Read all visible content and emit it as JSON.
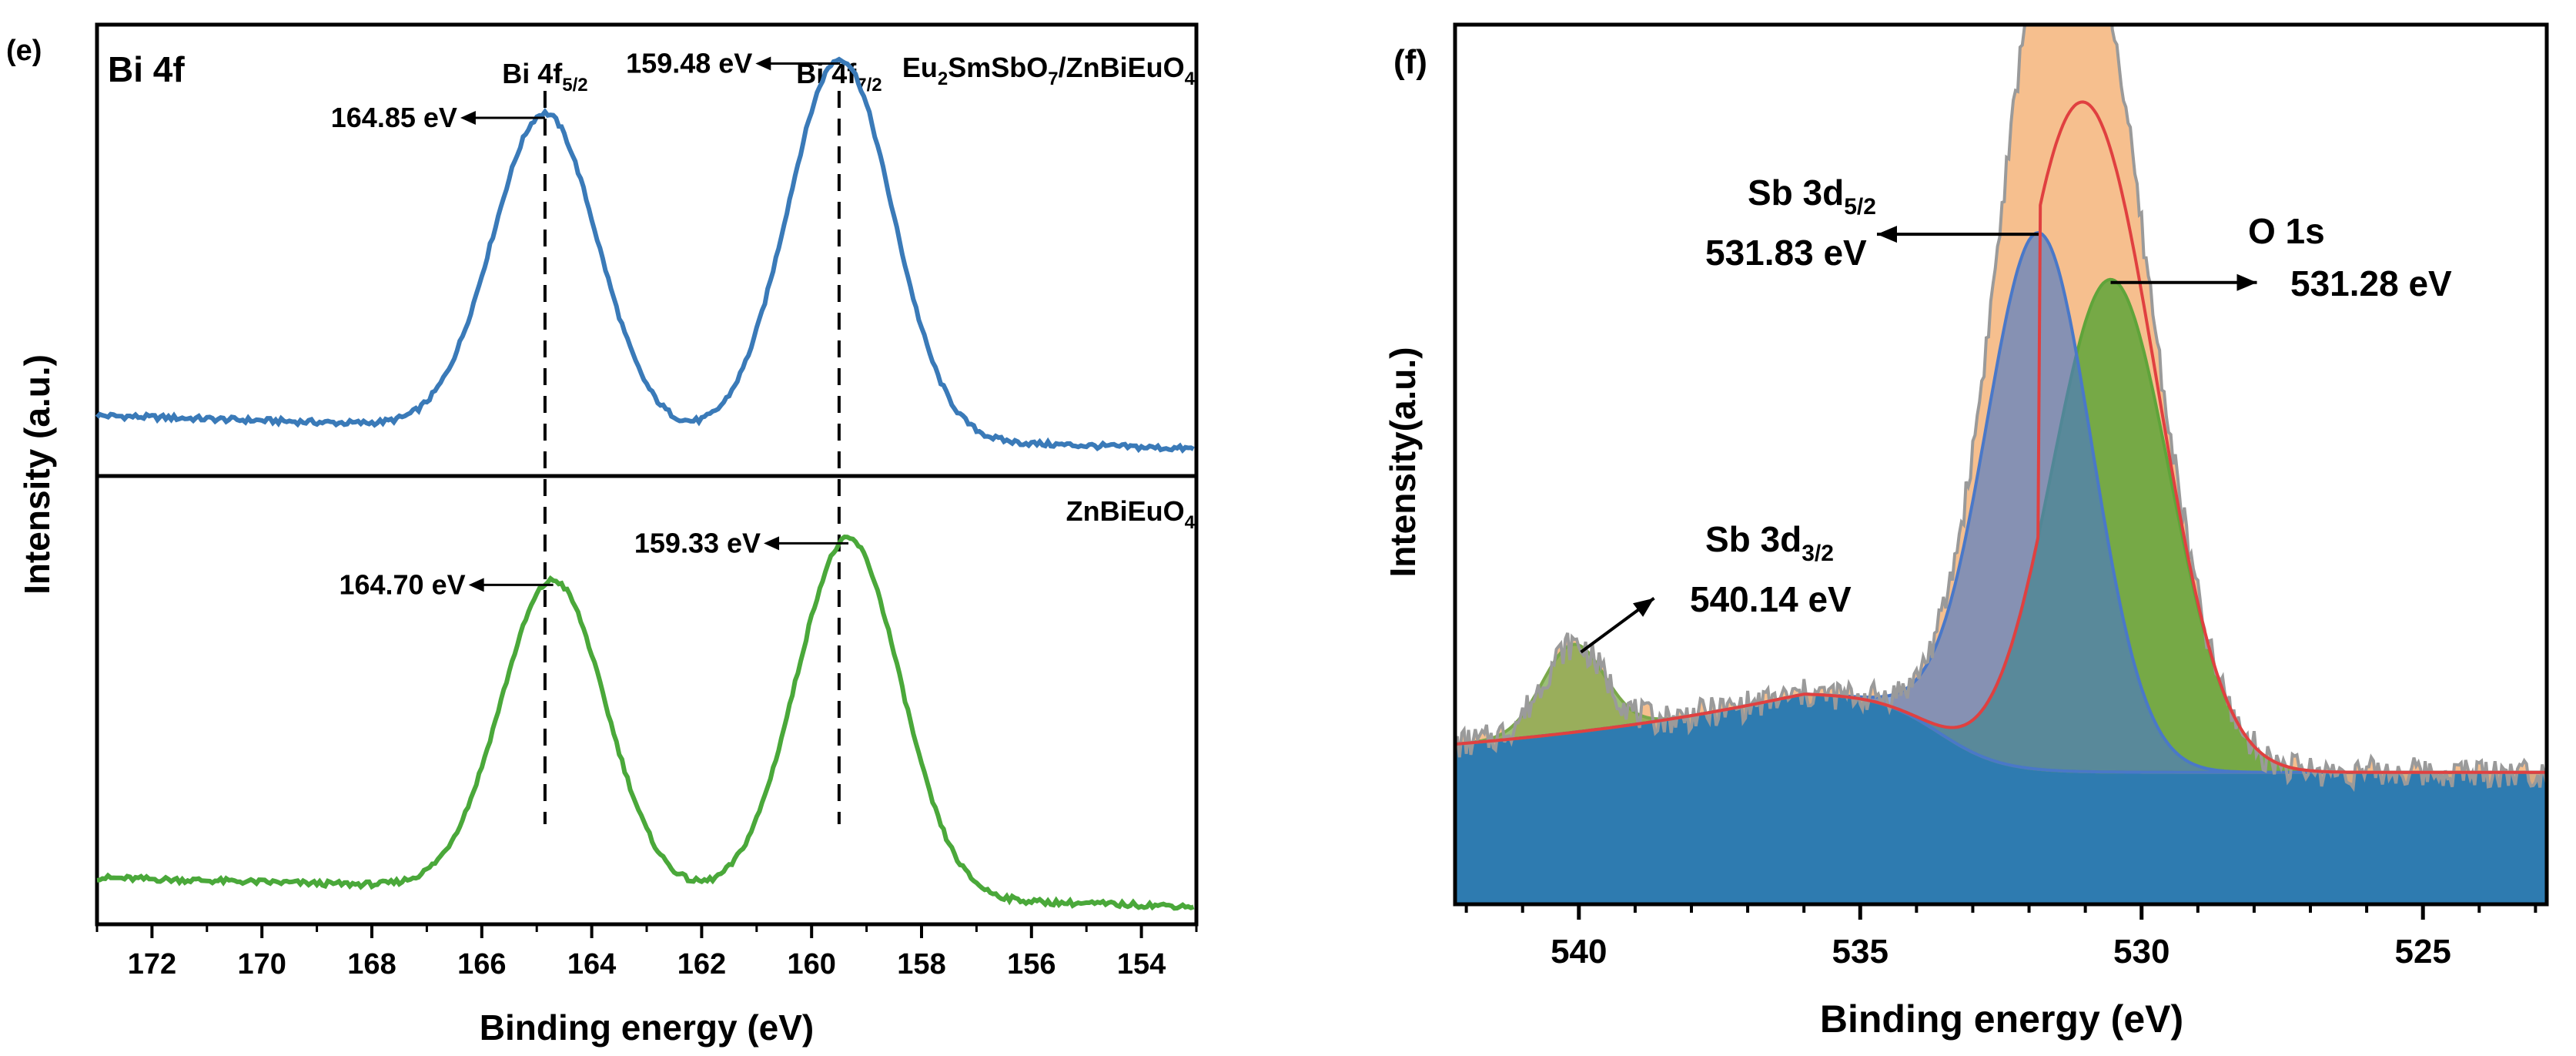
{
  "chart_data": [
    {
      "panel": "(e)",
      "type": "line",
      "title": "Bi 4f",
      "xlabel": "Binding energy (eV)",
      "ylabel": "Intensity (a.u.)",
      "xlim": [
        173,
        153
      ],
      "xticks": [
        "172",
        "170",
        "168",
        "166",
        "164",
        "162",
        "160",
        "158",
        "156",
        "154"
      ],
      "xtick_values": [
        172,
        170,
        168,
        166,
        164,
        162,
        160,
        158,
        156,
        154
      ],
      "reference_lines": [
        {
          "x": 164.85,
          "label_main": "Bi 4f",
          "label_sub": "5/2"
        },
        {
          "x": 159.5,
          "label_main": "Bi 4f",
          "label_sub": "7/2"
        }
      ],
      "series": [
        {
          "name": "Eu2SmSbO7/ZnBiEuO4",
          "name_parts": [
            "Eu",
            "2",
            "SmSbO",
            "7",
            "/ZnBiEuO",
            "4"
          ],
          "color": "#3a7ab8",
          "baseline": 0.06,
          "slope": 0.0037,
          "peaks": [
            {
              "center": 164.85,
              "height": 0.7,
              "label": "164.85 eV"
            },
            {
              "center": 159.48,
              "height": 0.84,
              "label": "159.48 eV"
            }
          ]
        },
        {
          "name": "ZnBiEuO4",
          "name_parts": [
            "ZnBiEuO",
            "4"
          ],
          "color": "#4aa83a",
          "baseline": 0.04,
          "slope": 0.0032,
          "peaks": [
            {
              "center": 164.7,
              "height": 0.69,
              "label": "164.70 eV"
            },
            {
              "center": 159.33,
              "height": 0.8,
              "label": "159.33 eV"
            }
          ]
        }
      ]
    },
    {
      "panel": "(f)",
      "type": "area",
      "xlabel": "Binding energy (eV)",
      "ylabel": "Intensity(a.u.)",
      "xlim": [
        542.2,
        522.8
      ],
      "ylim": [
        0,
        1
      ],
      "xticks": [
        "540",
        "535",
        "530",
        "525"
      ],
      "xtick_values": [
        540,
        535,
        530,
        525
      ],
      "background_level": 0.18,
      "components": [
        {
          "name": "Sb 3d5/2",
          "label_main": "Sb 3d",
          "label_sub": "5/2",
          "center": 531.83,
          "label": "531.83 eV",
          "color": "#4a78c8"
        },
        {
          "name": "O 1s",
          "label_main": "O 1s",
          "center": 531.28,
          "label": "531.28 eV",
          "color": "#5fa43a"
        },
        {
          "name": "Sb 3d3/2",
          "label_main": "Sb 3d",
          "label_sub": "3/2",
          "center": 540.14,
          "label": "540.14 eV",
          "color": "#7aa84a"
        }
      ],
      "envelope_color": "#f5b47a",
      "raw_color": "#9a9a9a",
      "fit_color": "#e04040"
    }
  ]
}
